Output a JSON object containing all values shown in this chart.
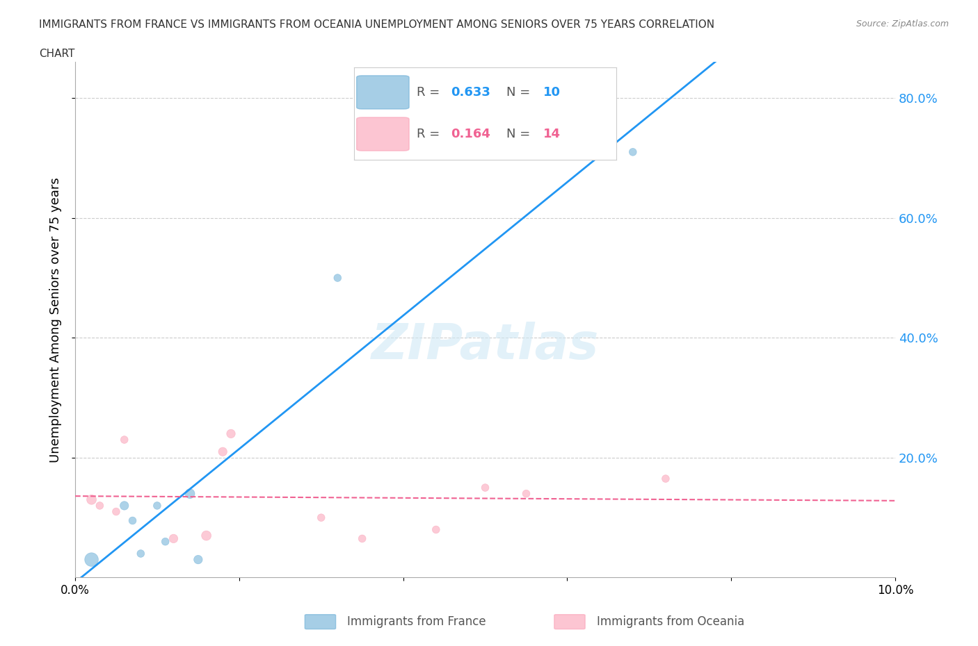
{
  "title_line1": "IMMIGRANTS FROM FRANCE VS IMMIGRANTS FROM OCEANIA UNEMPLOYMENT AMONG SENIORS OVER 75 YEARS CORRELATION",
  "title_line2": "CHART",
  "source": "Source: ZipAtlas.com",
  "ylabel": "Unemployment Among Seniors over 75 years",
  "xlim": [
    0.0,
    0.1
  ],
  "ylim": [
    0.0,
    0.86
  ],
  "xticks": [
    0.0,
    0.02,
    0.04,
    0.06,
    0.08,
    0.1
  ],
  "xticklabels": [
    "0.0%",
    "",
    "",
    "",
    "",
    "10.0%"
  ],
  "yticks_right": [
    0.2,
    0.4,
    0.6,
    0.8
  ],
  "yticklabels_right": [
    "20.0%",
    "40.0%",
    "60.0%",
    "80.0%"
  ],
  "france_color": "#6baed6",
  "oceania_color": "#fa9fb5",
  "france_line_color": "#2196F3",
  "oceania_line_color": "#F06292",
  "R_france": 0.633,
  "N_france": 10,
  "R_oceania": 0.164,
  "N_oceania": 14,
  "france_x": [
    0.002,
    0.006,
    0.007,
    0.008,
    0.01,
    0.011,
    0.014,
    0.015,
    0.032,
    0.068
  ],
  "france_y": [
    0.03,
    0.12,
    0.095,
    0.04,
    0.12,
    0.06,
    0.14,
    0.03,
    0.5,
    0.71
  ],
  "france_size": [
    200,
    80,
    60,
    60,
    60,
    60,
    100,
    80,
    60,
    60
  ],
  "oceania_x": [
    0.002,
    0.003,
    0.005,
    0.006,
    0.012,
    0.016,
    0.018,
    0.019,
    0.03,
    0.035,
    0.044,
    0.05,
    0.055,
    0.072
  ],
  "oceania_y": [
    0.13,
    0.12,
    0.11,
    0.23,
    0.065,
    0.07,
    0.21,
    0.24,
    0.1,
    0.065,
    0.08,
    0.15,
    0.14,
    0.165
  ],
  "oceania_size": [
    100,
    60,
    60,
    60,
    80,
    100,
    80,
    80,
    60,
    60,
    60,
    60,
    60,
    60
  ],
  "watermark": "ZIPatlas",
  "background_color": "#ffffff",
  "grid_color": "#cccccc"
}
